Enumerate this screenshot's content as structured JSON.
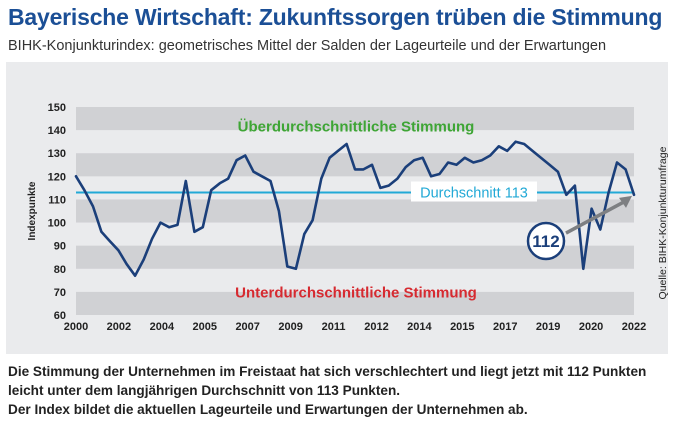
{
  "header": {
    "title": "Bayerische Wirtschaft: Zukunftssorgen trüben die Stimmung",
    "subtitle": "BIHK-Konjunkturindex: geometrisches Mittel der Salden der Lageurteile und der Erwartungen"
  },
  "caption": {
    "line1": "Die Stimmung der Unternehmen im Freistaat hat sich verschlechtert und liegt jetzt mit 112 Punkten",
    "line2": "leicht unter dem langjährigen Durchschnitt von 113 Punkten.",
    "line3": "Der Index bildet die aktuellen Lageurteile und Erwartungen der Unternehmen ab."
  },
  "source": "Quelle: BIHK-Konjunkturumfrage",
  "colors": {
    "title": "#1b4f96",
    "line": "#1b3f7a",
    "average": "#22a9d6",
    "above": "#3ea535",
    "below": "#d62a30",
    "band": "#d0d1d4",
    "panel": "#eaebed",
    "arrow": "#7d7f82"
  },
  "chart_data": {
    "type": "line",
    "ylabel": "Indexpunkte",
    "ylim": [
      60,
      150
    ],
    "xlim": [
      2000,
      2022
    ],
    "yticks": [
      60,
      70,
      80,
      90,
      100,
      110,
      120,
      130,
      140,
      150
    ],
    "xtick_labels": [
      "2000",
      "2002",
      "2004",
      "2005",
      "2007",
      "2009",
      "2011",
      "2012",
      "2014",
      "2015",
      "2017",
      "2019",
      "2020",
      "2022"
    ],
    "grid": "horizontal bands",
    "average": {
      "value": 113,
      "label": "Durchschnitt 113"
    },
    "above_label": "Überdurchschnittliche Stimmung",
    "below_label": "Unterdurchschnittliche Stimmung",
    "latest": {
      "value": 112,
      "label": "112"
    },
    "series": [
      {
        "x": [
          2000.0,
          2000.33,
          2000.67,
          2001.0,
          2001.33,
          2001.67,
          2002.0,
          2002.33,
          2002.67,
          2003.0,
          2003.33,
          2003.67,
          2004.0,
          2004.33,
          2004.67,
          2005.0,
          2005.33,
          2005.67,
          2006.0,
          2006.33,
          2006.67,
          2007.0,
          2007.33,
          2007.67,
          2008.0,
          2008.33,
          2008.67,
          2009.0,
          2009.33,
          2009.67,
          2010.0,
          2010.33,
          2010.67,
          2011.0,
          2011.33,
          2011.67,
          2012.0,
          2012.33,
          2012.67,
          2013.0,
          2013.33,
          2013.67,
          2014.0,
          2014.33,
          2014.67,
          2015.0,
          2015.33,
          2015.67,
          2016.0,
          2016.33,
          2016.67,
          2017.0,
          2017.33,
          2017.67,
          2018.0,
          2018.33,
          2018.67,
          2019.0,
          2019.33,
          2019.67,
          2020.0,
          2020.33,
          2020.67,
          2021.0,
          2021.33,
          2021.67,
          2022.0
        ],
        "values": [
          120,
          114,
          107,
          96,
          92,
          88,
          82,
          77,
          84,
          93,
          100,
          98,
          99,
          118,
          96,
          98,
          114,
          117,
          119,
          127,
          129,
          122,
          120,
          118,
          105,
          81,
          80,
          95,
          101,
          119,
          128,
          131,
          134,
          123,
          123,
          125,
          115,
          116,
          119,
          124,
          127,
          128,
          120,
          121,
          126,
          125,
          128,
          126,
          127,
          129,
          133,
          131,
          135,
          134,
          131,
          128,
          125,
          122,
          112,
          116,
          80,
          106,
          97,
          113,
          126,
          123,
          112
        ]
      }
    ]
  }
}
